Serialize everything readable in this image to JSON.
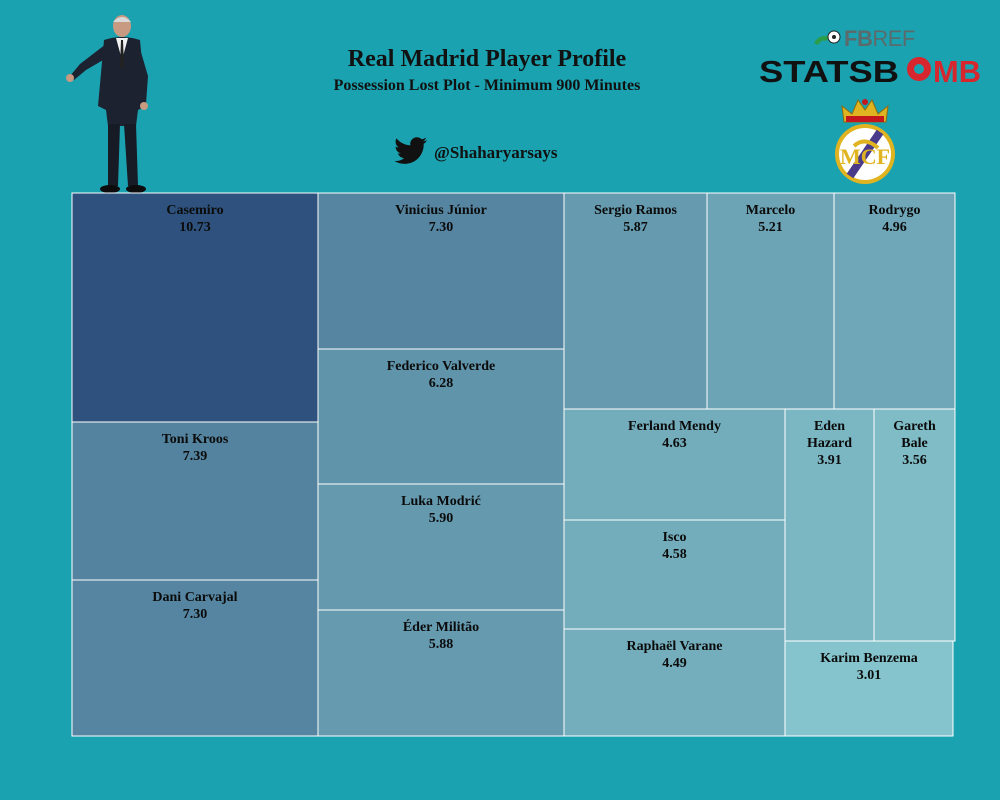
{
  "header": {
    "title": "Real Madrid Player Profile",
    "subtitle": "Possession Lost Plot - Minimum 900 Minutes",
    "twitter_handle": "@Shaharyarsays",
    "fbref_prefix": "FB",
    "fbref_suffix": "REF",
    "statsbomb_prefix": "STATSB",
    "statsbomb_suffix": "MB"
  },
  "icons": {
    "coach": "coach-photo",
    "twitter": "twitter-bird-icon",
    "fbref": "fbref-logo",
    "statsbomb": "statsbomb-logo",
    "crest": "real-madrid-crest"
  },
  "colors": {
    "background": "#1aa2b0",
    "scale_dark": "#2e527d",
    "scale_light": "#85c4cc",
    "statsbomb_red": "#d8262e",
    "twitter_blue": "#111111"
  },
  "chart_data": {
    "type": "treemap",
    "title": "Real Madrid Player Profile",
    "subtitle": "Possession Lost Plot - Minimum 900 Minutes",
    "items": [
      {
        "label": "Casemiro",
        "value": 10.73
      },
      {
        "label": "Toni Kroos",
        "value": 7.39
      },
      {
        "label": "Dani Carvajal",
        "value": 7.3
      },
      {
        "label": "Vinicius Júnior",
        "value": 7.3
      },
      {
        "label": "Federico Valverde",
        "value": 6.28
      },
      {
        "label": "Luka Modrić",
        "value": 5.9
      },
      {
        "label": "Éder Militão",
        "value": 5.88
      },
      {
        "label": "Sergio Ramos",
        "value": 5.87
      },
      {
        "label": "Marcelo",
        "value": 5.21
      },
      {
        "label": "Rodrygo",
        "value": 4.96
      },
      {
        "label": "Ferland Mendy",
        "value": 4.63
      },
      {
        "label": "Isco",
        "value": 4.58
      },
      {
        "label": "Raphaël Varane",
        "value": 4.49
      },
      {
        "label": "Eden Hazard",
        "value": 3.91
      },
      {
        "label": "Gareth Bale",
        "value": 3.56
      },
      {
        "label": "Karim Benzema",
        "value": 3.01
      }
    ]
  }
}
